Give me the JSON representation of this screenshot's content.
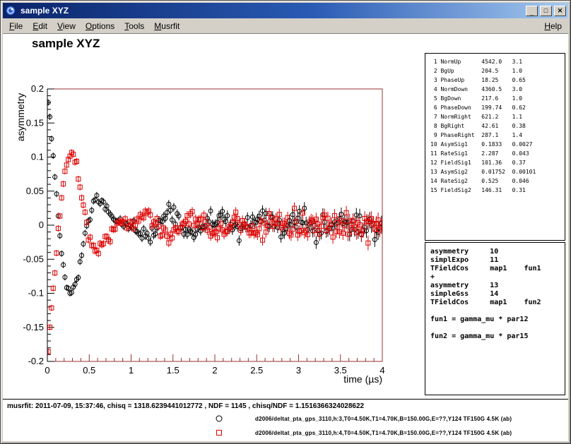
{
  "window": {
    "title": "sample XYZ",
    "controls": {
      "minimize": "_",
      "maximize": "□",
      "close": "✕"
    }
  },
  "menu": {
    "items": [
      "File",
      "Edit",
      "View",
      "Options",
      "Tools",
      "Musrfit"
    ],
    "help": "Help"
  },
  "canvas": {
    "title": "sample XYZ"
  },
  "param_table": {
    "rows": [
      {
        "no": "1",
        "name": "NormUp",
        "value": "4542.0",
        "error": "3.1"
      },
      {
        "no": "2",
        "name": "BgUp",
        "value": "204.5",
        "error": "1.0"
      },
      {
        "no": "3",
        "name": "PhaseUp",
        "value": "18.25",
        "error": "0.65"
      },
      {
        "no": "4",
        "name": "NormDown",
        "value": "4360.5",
        "error": "3.0"
      },
      {
        "no": "5",
        "name": "BgDown",
        "value": "217.6",
        "error": "1.0"
      },
      {
        "no": "6",
        "name": "PhaseDown",
        "value": "199.74",
        "error": "0.62"
      },
      {
        "no": "7",
        "name": "NormRight",
        "value": "621.2",
        "error": "1.1"
      },
      {
        "no": "8",
        "name": "BgRight",
        "value": "42.61",
        "error": "0.38"
      },
      {
        "no": "9",
        "name": "PhaseRight",
        "value": "287.1",
        "error": "1.4"
      },
      {
        "no": "10",
        "name": "AsymSig1",
        "value": "0.1833",
        "error": "0.0027"
      },
      {
        "no": "11",
        "name": "RateSig1",
        "value": "2.287",
        "error": "0.043"
      },
      {
        "no": "12",
        "name": "FieldSig1",
        "value": "101.36",
        "error": "0.37"
      },
      {
        "no": "13",
        "name": "AsymSig2",
        "value": "0.01752",
        "error": "0.00101"
      },
      {
        "no": "14",
        "name": "RateSig2",
        "value": "0.525",
        "error": "0.046"
      },
      {
        "no": "15",
        "name": "FieldSig2",
        "value": "146.31",
        "error": "0.31"
      }
    ]
  },
  "theory_box": {
    "lines": [
      "asymmetry     10",
      "simplExpo     11",
      "TFieldCos     map1    fun1",
      "+",
      "asymmetry     13",
      "simpleGss     14",
      "TFieldCos     map1    fun2",
      "",
      "fun1 = gamma_mu * par12",
      "",
      "fun2 = gamma_mu * par15"
    ]
  },
  "footer": {
    "status": "musrfit: 2011-07-09, 15:37:46, chisq = 1318.6239441012772 , NDF = 1145 , chisq/NDF = 1.1516366324028622",
    "legend": [
      {
        "marker": "open-circle",
        "color": "#000000",
        "label": "d2006/deltat_pta_gps_3110,h:3,T0=4.50K,T1=4.70K,B=150.00G,E=??,Y124 TF150G 4.5K (ab)"
      },
      {
        "marker": "open-square",
        "color": "#dd0000",
        "label": "d2006/deltat_pta_gps_3110,h:4,T0=4.50K,T1=4.70K,B=150.00G,E=??,Y124 TF150G 4.5K (ab)"
      }
    ]
  },
  "chart_data": {
    "type": "scatter",
    "title": "sample XYZ",
    "xlabel": "time (µs)",
    "ylabel": "asymmetry",
    "xlim": [
      0,
      4
    ],
    "ylim": [
      -0.2,
      0.2
    ],
    "xticks": [
      0,
      0.5,
      1,
      1.5,
      2,
      2.5,
      3,
      3.5,
      4
    ],
    "yticks": [
      -0.2,
      -0.15,
      -0.1,
      -0.05,
      0,
      0.05,
      0.1,
      0.15,
      0.2
    ],
    "x_minor_step": 0.1,
    "y_minor_step": 0.01,
    "frame_color": "#993333",
    "description": "Two damped-oscillation muSR asymmetry spectra: asym1*exp(-rate1*t)*cos(gamma_mu*field1*t+phase) + asym2*exp(-(rate2*t)^2/2)*cos(gamma_mu*field2*t+phase), parameters from fit table",
    "series": [
      {
        "name": "d2006/deltat_pta_gps_3110,h:3,T0=4.50K,T1=4.70K,B=150.00G,E=??,Y124 TF150G 4.5K (ab)",
        "marker": "open-circle",
        "color": "#000000",
        "model": {
          "phase_deg": 18.25,
          "asym1": 0.1833,
          "rate1": 2.287,
          "field1": 101.36,
          "asym2": 0.01752,
          "rate2": 0.525,
          "field2": 146.31
        }
      },
      {
        "name": "d2006/deltat_pta_gps_3110,h:4,T0=4.50K,T1=4.70K,B=150.00G,E=??,Y124 TF150G 4.5K (ab)",
        "marker": "open-square",
        "color": "#dd0000",
        "model": {
          "phase_deg": 199.74,
          "asym1": 0.1833,
          "rate1": 2.287,
          "field1": 101.36,
          "asym2": 0.01752,
          "rate2": 0.525,
          "field2": 146.31
        }
      }
    ]
  }
}
